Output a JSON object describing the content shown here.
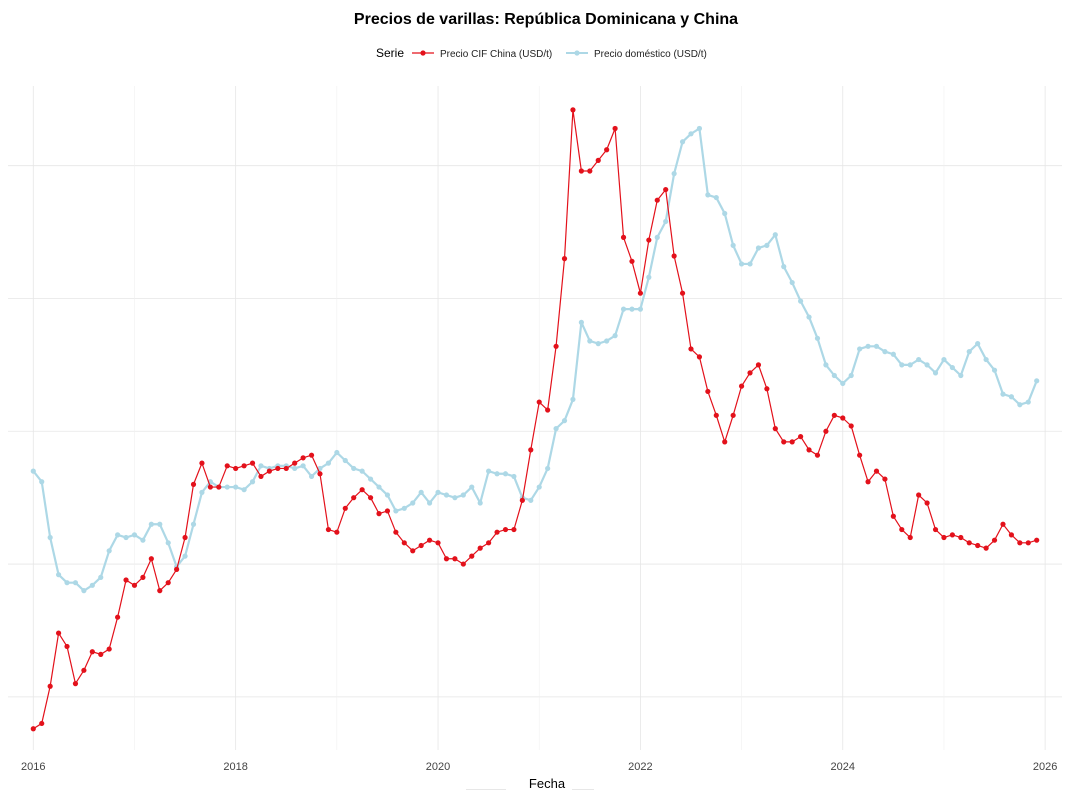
{
  "chart_data": {
    "type": "line",
    "title": "Precios de varillas: República Dominicana y China",
    "xlabel": "Fecha",
    "ylabel": "",
    "legend": {
      "title": "Serie",
      "position": "top"
    },
    "x_ticks": [
      "2016",
      "2018",
      "2020",
      "2022",
      "2024",
      "2026"
    ],
    "xlim": [
      "2015-10",
      "2026-03"
    ],
    "ylim": [
      -2,
      23
    ],
    "grid": true,
    "y_tick_labels_visible": false,
    "series": [
      {
        "name": "Precio CIF China (USD/t)",
        "color": "#e3111b",
        "marker": "circle",
        "points": [
          [
            "2016-01",
            -1.2
          ],
          [
            "2016-02",
            -1.0
          ],
          [
            "2016-03",
            0.4
          ],
          [
            "2016-04",
            2.4
          ],
          [
            "2016-05",
            1.9
          ],
          [
            "2016-06",
            0.5
          ],
          [
            "2016-07",
            1.0
          ],
          [
            "2016-08",
            1.7
          ],
          [
            "2016-09",
            1.6
          ],
          [
            "2016-10",
            1.8
          ],
          [
            "2016-11",
            3.0
          ],
          [
            "2016-12",
            4.4
          ],
          [
            "2017-01",
            4.2
          ],
          [
            "2017-02",
            4.5
          ],
          [
            "2017-03",
            5.2
          ],
          [
            "2017-04",
            4.0
          ],
          [
            "2017-05",
            4.3
          ],
          [
            "2017-06",
            4.8
          ],
          [
            "2017-07",
            6.0
          ],
          [
            "2017-08",
            8.0
          ],
          [
            "2017-09",
            8.8
          ],
          [
            "2017-10",
            7.9
          ],
          [
            "2017-11",
            7.9
          ],
          [
            "2017-12",
            8.7
          ],
          [
            "2018-01",
            8.6
          ],
          [
            "2018-02",
            8.7
          ],
          [
            "2018-03",
            8.8
          ],
          [
            "2018-04",
            8.3
          ],
          [
            "2018-05",
            8.5
          ],
          [
            "2018-06",
            8.6
          ],
          [
            "2018-07",
            8.6
          ],
          [
            "2018-08",
            8.8
          ],
          [
            "2018-09",
            9.0
          ],
          [
            "2018-10",
            9.1
          ],
          [
            "2018-11",
            8.4
          ],
          [
            "2018-12",
            6.3
          ],
          [
            "2019-01",
            6.2
          ],
          [
            "2019-02",
            7.1
          ],
          [
            "2019-03",
            7.5
          ],
          [
            "2019-04",
            7.8
          ],
          [
            "2019-05",
            7.5
          ],
          [
            "2019-06",
            6.9
          ],
          [
            "2019-07",
            7.0
          ],
          [
            "2019-08",
            6.2
          ],
          [
            "2019-09",
            5.8
          ],
          [
            "2019-10",
            5.5
          ],
          [
            "2019-11",
            5.7
          ],
          [
            "2019-12",
            5.9
          ],
          [
            "2020-01",
            5.8
          ],
          [
            "2020-02",
            5.2
          ],
          [
            "2020-03",
            5.2
          ],
          [
            "2020-04",
            5.0
          ],
          [
            "2020-05",
            5.3
          ],
          [
            "2020-06",
            5.6
          ],
          [
            "2020-07",
            5.8
          ],
          [
            "2020-08",
            6.2
          ],
          [
            "2020-09",
            6.3
          ],
          [
            "2020-10",
            6.3
          ],
          [
            "2020-11",
            7.4
          ],
          [
            "2020-12",
            9.3
          ],
          [
            "2021-01",
            11.1
          ],
          [
            "2021-02",
            10.8
          ],
          [
            "2021-03",
            13.2
          ],
          [
            "2021-04",
            16.5
          ],
          [
            "2021-05",
            22.1
          ],
          [
            "2021-06",
            19.8
          ],
          [
            "2021-07",
            19.8
          ],
          [
            "2021-08",
            20.2
          ],
          [
            "2021-09",
            20.6
          ],
          [
            "2021-10",
            21.4
          ],
          [
            "2021-11",
            17.3
          ],
          [
            "2021-12",
            16.4
          ],
          [
            "2022-01",
            15.2
          ],
          [
            "2022-02",
            17.2
          ],
          [
            "2022-03",
            18.7
          ],
          [
            "2022-04",
            19.1
          ],
          [
            "2022-05",
            16.6
          ],
          [
            "2022-06",
            15.2
          ],
          [
            "2022-07",
            13.1
          ],
          [
            "2022-08",
            12.8
          ],
          [
            "2022-09",
            11.5
          ],
          [
            "2022-10",
            10.6
          ],
          [
            "2022-11",
            9.6
          ],
          [
            "2022-12",
            10.6
          ],
          [
            "2023-01",
            11.7
          ],
          [
            "2023-02",
            12.2
          ],
          [
            "2023-03",
            12.5
          ],
          [
            "2023-04",
            11.6
          ],
          [
            "2023-05",
            10.1
          ],
          [
            "2023-06",
            9.6
          ],
          [
            "2023-07",
            9.6
          ],
          [
            "2023-08",
            9.8
          ],
          [
            "2023-09",
            9.3
          ],
          [
            "2023-10",
            9.1
          ],
          [
            "2023-11",
            10.0
          ],
          [
            "2023-12",
            10.6
          ],
          [
            "2024-01",
            10.5
          ],
          [
            "2024-02",
            10.2
          ],
          [
            "2024-03",
            9.1
          ],
          [
            "2024-04",
            8.1
          ],
          [
            "2024-05",
            8.5
          ],
          [
            "2024-06",
            8.2
          ],
          [
            "2024-07",
            6.8
          ],
          [
            "2024-08",
            6.3
          ],
          [
            "2024-09",
            6.0
          ],
          [
            "2024-10",
            7.6
          ],
          [
            "2024-11",
            7.3
          ],
          [
            "2024-12",
            6.3
          ],
          [
            "2025-01",
            6.0
          ],
          [
            "2025-02",
            6.1
          ],
          [
            "2025-03",
            6.0
          ],
          [
            "2025-04",
            5.8
          ],
          [
            "2025-05",
            5.7
          ],
          [
            "2025-06",
            5.6
          ],
          [
            "2025-07",
            5.9
          ],
          [
            "2025-08",
            6.5
          ],
          [
            "2025-09",
            6.1
          ],
          [
            "2025-10",
            5.8
          ],
          [
            "2025-11",
            5.8
          ],
          [
            "2025-12",
            5.9
          ]
        ]
      },
      {
        "name": "Precio doméstico (USD/t)",
        "color": "#add8e6",
        "marker": "circle",
        "points": [
          [
            "2016-01",
            8.5
          ],
          [
            "2016-02",
            8.1
          ],
          [
            "2016-03",
            6.0
          ],
          [
            "2016-04",
            4.6
          ],
          [
            "2016-05",
            4.3
          ],
          [
            "2016-06",
            4.3
          ],
          [
            "2016-07",
            4.0
          ],
          [
            "2016-08",
            4.2
          ],
          [
            "2016-09",
            4.5
          ],
          [
            "2016-10",
            5.5
          ],
          [
            "2016-11",
            6.1
          ],
          [
            "2016-12",
            6.0
          ],
          [
            "2017-01",
            6.1
          ],
          [
            "2017-02",
            5.9
          ],
          [
            "2017-03",
            6.5
          ],
          [
            "2017-04",
            6.5
          ],
          [
            "2017-05",
            5.8
          ],
          [
            "2017-06",
            4.9
          ],
          [
            "2017-07",
            5.3
          ],
          [
            "2017-08",
            6.5
          ],
          [
            "2017-09",
            7.7
          ],
          [
            "2017-10",
            8.1
          ],
          [
            "2017-11",
            7.9
          ],
          [
            "2017-12",
            7.9
          ],
          [
            "2018-01",
            7.9
          ],
          [
            "2018-02",
            7.8
          ],
          [
            "2018-03",
            8.1
          ],
          [
            "2018-04",
            8.7
          ],
          [
            "2018-05",
            8.6
          ],
          [
            "2018-06",
            8.7
          ],
          [
            "2018-07",
            8.7
          ],
          [
            "2018-08",
            8.6
          ],
          [
            "2018-09",
            8.7
          ],
          [
            "2018-10",
            8.3
          ],
          [
            "2018-11",
            8.6
          ],
          [
            "2018-12",
            8.8
          ],
          [
            "2019-01",
            9.2
          ],
          [
            "2019-02",
            8.9
          ],
          [
            "2019-03",
            8.6
          ],
          [
            "2019-04",
            8.5
          ],
          [
            "2019-05",
            8.2
          ],
          [
            "2019-06",
            7.9
          ],
          [
            "2019-07",
            7.6
          ],
          [
            "2019-08",
            7.0
          ],
          [
            "2019-09",
            7.1
          ],
          [
            "2019-10",
            7.3
          ],
          [
            "2019-11",
            7.7
          ],
          [
            "2019-12",
            7.3
          ],
          [
            "2020-01",
            7.7
          ],
          [
            "2020-02",
            7.6
          ],
          [
            "2020-03",
            7.5
          ],
          [
            "2020-04",
            7.6
          ],
          [
            "2020-05",
            7.9
          ],
          [
            "2020-06",
            7.3
          ],
          [
            "2020-07",
            8.5
          ],
          [
            "2020-08",
            8.4
          ],
          [
            "2020-09",
            8.4
          ],
          [
            "2020-10",
            8.3
          ],
          [
            "2020-11",
            7.5
          ],
          [
            "2020-12",
            7.4
          ],
          [
            "2021-01",
            7.9
          ],
          [
            "2021-02",
            8.6
          ],
          [
            "2021-03",
            10.1
          ],
          [
            "2021-04",
            10.4
          ],
          [
            "2021-05",
            11.2
          ],
          [
            "2021-06",
            14.1
          ],
          [
            "2021-07",
            13.4
          ],
          [
            "2021-08",
            13.3
          ],
          [
            "2021-09",
            13.4
          ],
          [
            "2021-10",
            13.6
          ],
          [
            "2021-11",
            14.6
          ],
          [
            "2021-12",
            14.6
          ],
          [
            "2022-01",
            14.6
          ],
          [
            "2022-02",
            15.8
          ],
          [
            "2022-03",
            17.3
          ],
          [
            "2022-04",
            17.9
          ],
          [
            "2022-05",
            19.7
          ],
          [
            "2022-06",
            20.9
          ],
          [
            "2022-07",
            21.2
          ],
          [
            "2022-08",
            21.4
          ],
          [
            "2022-09",
            18.9
          ],
          [
            "2022-10",
            18.8
          ],
          [
            "2022-11",
            18.2
          ],
          [
            "2022-12",
            17.0
          ],
          [
            "2023-01",
            16.3
          ],
          [
            "2023-02",
            16.3
          ],
          [
            "2023-03",
            16.9
          ],
          [
            "2023-04",
            17.0
          ],
          [
            "2023-05",
            17.4
          ],
          [
            "2023-06",
            16.2
          ],
          [
            "2023-07",
            15.6
          ],
          [
            "2023-08",
            14.9
          ],
          [
            "2023-09",
            14.3
          ],
          [
            "2023-10",
            13.5
          ],
          [
            "2023-11",
            12.5
          ],
          [
            "2023-12",
            12.1
          ],
          [
            "2024-01",
            11.8
          ],
          [
            "2024-02",
            12.1
          ],
          [
            "2024-03",
            13.1
          ],
          [
            "2024-04",
            13.2
          ],
          [
            "2024-05",
            13.2
          ],
          [
            "2024-06",
            13.0
          ],
          [
            "2024-07",
            12.9
          ],
          [
            "2024-08",
            12.5
          ],
          [
            "2024-09",
            12.5
          ],
          [
            "2024-10",
            12.7
          ],
          [
            "2024-11",
            12.5
          ],
          [
            "2024-12",
            12.2
          ],
          [
            "2025-01",
            12.7
          ],
          [
            "2025-02",
            12.4
          ],
          [
            "2025-03",
            12.1
          ],
          [
            "2025-04",
            13.0
          ],
          [
            "2025-05",
            13.3
          ],
          [
            "2025-06",
            12.7
          ],
          [
            "2025-07",
            12.3
          ],
          [
            "2025-08",
            11.4
          ],
          [
            "2025-09",
            11.3
          ],
          [
            "2025-10",
            11.0
          ],
          [
            "2025-11",
            11.1
          ],
          [
            "2025-12",
            11.9
          ]
        ]
      }
    ]
  }
}
